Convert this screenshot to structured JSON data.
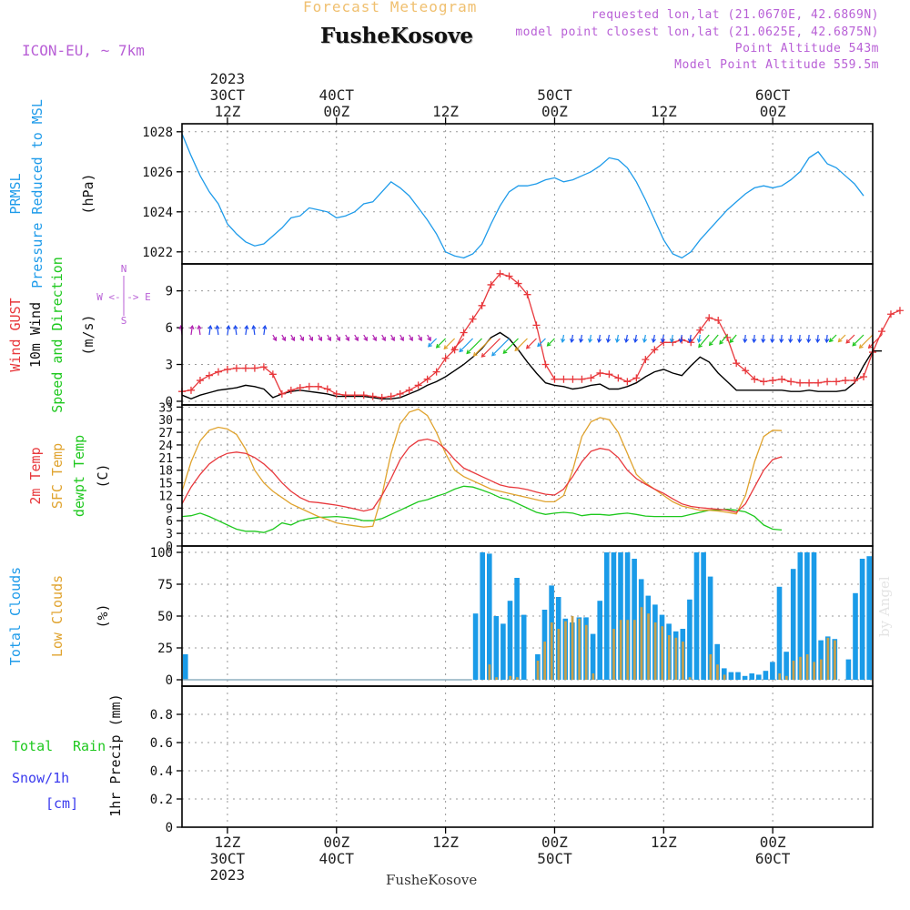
{
  "header": {
    "product": "Forecast Meteogram",
    "location": "FusheKosove",
    "model": "ICON-EU, ~ 7km",
    "requested": "requested lon,lat (21.0670E, 42.6869N)",
    "closest": "model point closest lon,lat (21.0625E, 42.6875N)",
    "point_alt": "Point Altitude 543m",
    "model_alt": "Model Point Altitude 559.5m",
    "footer": "FusheKosove",
    "watermark": "by Angel"
  },
  "time_axis": {
    "year": "2023",
    "ticks": [
      {
        "top": "12Z",
        "mid": "30CT",
        "bottom": "2023",
        "hour": 12
      },
      {
        "top": "00Z",
        "mid": "40CT",
        "bottom": "",
        "hour": 24
      },
      {
        "top": "12Z",
        "mid": "",
        "bottom": "",
        "hour": 36
      },
      {
        "top": "00Z",
        "mid": "50CT",
        "bottom": "",
        "hour": 48
      },
      {
        "top": "12Z",
        "mid": "",
        "bottom": "",
        "hour": 60
      },
      {
        "top": "00Z",
        "mid": "60CT",
        "bottom": "",
        "hour": 72
      }
    ],
    "top_labels": [
      {
        "l1": "2023",
        "l2": "30CT",
        "l3": "12Z",
        "hour": 12
      },
      {
        "l1": "",
        "l2": "40CT",
        "l3": "00Z",
        "hour": 24
      },
      {
        "l1": "",
        "l2": "",
        "l3": "12Z",
        "hour": 36
      },
      {
        "l1": "",
        "l2": "50CT",
        "l3": "00Z",
        "hour": 48
      },
      {
        "l1": "",
        "l2": "",
        "l3": "12Z",
        "hour": 60
      },
      {
        "l1": "",
        "l2": "60CT",
        "l3": "00Z",
        "hour": 72
      }
    ],
    "start_hour": 7,
    "end_hour": 83
  },
  "panel_labels": {
    "pressure": [
      "PRMSL",
      "Pressure Reduced to MSL",
      "(hPa)"
    ],
    "wind": [
      "Wind GUST",
      "10m Wind",
      "Speed and Direction",
      "(m/s)"
    ],
    "wind_compass": [
      "N",
      "W <-|-> E",
      "S"
    ],
    "temp": [
      "2m Temp",
      "SFC Temp",
      "dewpt Temp",
      "(C)"
    ],
    "cloud": [
      "Total Clouds",
      "Low Clouds",
      "(%)"
    ],
    "precip": [
      "Total",
      "Rain",
      "Snow/1h",
      "[cm]",
      "1hr Precip (mm)"
    ]
  },
  "colors": {
    "pressure": "#1e9bea",
    "gust": "#e8383c",
    "wind": "#000000",
    "temp2m": "#e8383c",
    "sfc": "#e0a32e",
    "dewpt": "#1ec81e",
    "total_cloud": "#1a9be8",
    "low_cloud": "#c8a04a",
    "label_purple": "#b85fd6",
    "label_green": "#1ec81e",
    "label_blue": "#3a3aee"
  },
  "chart_data": [
    {
      "type": "line",
      "title": "PRMSL Pressure Reduced to MSL",
      "ylabel": "(hPa)",
      "ylim": [
        1021.4,
        1028.4
      ],
      "yticks": [
        1022,
        1024,
        1026,
        1028
      ],
      "x_hours_start": 7,
      "x_step_hours": 1,
      "series": [
        {
          "name": "PRMSL",
          "values": [
            1027.9,
            1026.8,
            1025.8,
            1025.0,
            1024.4,
            1023.4,
            1022.9,
            1022.5,
            1022.3,
            1022.4,
            1022.8,
            1023.2,
            1023.7,
            1023.8,
            1024.2,
            1024.1,
            1024.0,
            1023.7,
            1023.8,
            1024.0,
            1024.4,
            1024.5,
            1025.0,
            1025.5,
            1025.2,
            1024.8,
            1024.2,
            1023.6,
            1022.9,
            1022.0,
            1021.8,
            1021.7,
            1021.9,
            1022.4,
            1023.4,
            1024.3,
            1025.0,
            1025.3,
            1025.3,
            1025.4,
            1025.6,
            1025.7,
            1025.5,
            1025.6,
            1025.8,
            1026.0,
            1026.3,
            1026.7,
            1026.6,
            1026.2,
            1025.5,
            1024.6,
            1023.6,
            1022.6,
            1021.9,
            1021.7,
            1022.0,
            1022.6,
            1023.1,
            1023.6,
            1024.1,
            1024.5,
            1024.9,
            1025.2,
            1025.3,
            1025.2,
            1025.3,
            1025.6,
            1026.0,
            1026.7,
            1027.0,
            1026.4,
            1026.2,
            1025.8,
            1025.4,
            1024.8
          ]
        }
      ]
    },
    {
      "type": "line",
      "title": "Wind GUST / 10m Wind Speed and Direction",
      "ylabel": "(m/s)",
      "ylim": [
        -0.3,
        11.2
      ],
      "yticks": [
        0,
        3,
        6,
        9
      ],
      "x_hours_start": 7,
      "x_step_hours": 1,
      "series": [
        {
          "name": "Wind GUST",
          "values": [
            0.8,
            0.9,
            1.7,
            2.1,
            2.4,
            2.6,
            2.7,
            2.7,
            2.7,
            2.8,
            2.2,
            0.6,
            0.9,
            1.1,
            1.2,
            1.2,
            1.0,
            0.6,
            0.5,
            0.5,
            0.5,
            0.4,
            0.3,
            0.4,
            0.6,
            0.9,
            1.3,
            1.8,
            2.4,
            3.5,
            4.2,
            5.6,
            6.7,
            7.8,
            9.5,
            10.4,
            10.2,
            9.6,
            8.7,
            6.2,
            3.0,
            1.8,
            1.8,
            1.8,
            1.8,
            1.9,
            2.3,
            2.2,
            1.9,
            1.6,
            1.9,
            3.4,
            4.2,
            4.8,
            4.8,
            5.0,
            4.8,
            5.8,
            6.8,
            6.6,
            5.2,
            3.1,
            2.5,
            1.8,
            1.6,
            1.7,
            1.8,
            1.6,
            1.5,
            1.5,
            1.5,
            1.6,
            1.6,
            1.7,
            1.7,
            2.0,
            4.0,
            5.7,
            7.1,
            7.4
          ]
        },
        {
          "name": "10m Wind",
          "values": [
            0.5,
            0.2,
            0.5,
            0.7,
            0.9,
            1.0,
            1.1,
            1.3,
            1.2,
            1.0,
            0.3,
            0.6,
            0.8,
            0.9,
            0.8,
            0.7,
            0.6,
            0.4,
            0.4,
            0.4,
            0.4,
            0.3,
            0.2,
            0.2,
            0.3,
            0.6,
            0.9,
            1.3,
            1.6,
            2.0,
            2.5,
            3.0,
            3.6,
            4.3,
            5.2,
            5.6,
            5.1,
            4.2,
            3.2,
            2.3,
            1.5,
            1.3,
            1.2,
            1.0,
            1.1,
            1.3,
            1.4,
            1.0,
            1.0,
            1.2,
            1.5,
            2.0,
            2.4,
            2.6,
            2.3,
            2.1,
            2.9,
            3.6,
            3.2,
            2.3,
            1.6,
            0.9,
            0.9,
            0.9,
            0.9,
            0.9,
            0.9,
            0.8,
            0.8,
            0.9,
            0.8,
            0.8,
            0.8,
            0.9,
            1.5,
            2.9,
            4.1,
            4.1
          ]
        }
      ]
    },
    {
      "type": "line",
      "title": "2m Temp / SFC Temp / dewpt Temp",
      "ylabel": "(C)",
      "ylim": [
        0,
        33.5
      ],
      "yticks": [
        0,
        3,
        6,
        9,
        12,
        15,
        18,
        21,
        24,
        27,
        30,
        33
      ],
      "x_hours_start": 7,
      "x_step_hours": 1,
      "series": [
        {
          "name": "2m Temp",
          "values": [
            10,
            14,
            17,
            19.5,
            21,
            22,
            22.3,
            22,
            21,
            19.5,
            17.5,
            15,
            13,
            11.5,
            10.5,
            10.3,
            10,
            9.7,
            9.3,
            8.8,
            8.3,
            8.8,
            12,
            16,
            20.5,
            23.5,
            25,
            25.4,
            24.8,
            23,
            20.5,
            18.5,
            17.5,
            16.5,
            15.5,
            14.5,
            14,
            13.8,
            13.4,
            12.8,
            12.3,
            12.1,
            13.5,
            16.5,
            20,
            22.5,
            23.2,
            22.8,
            21,
            18,
            16,
            14.7,
            13.5,
            12.5,
            11.2,
            10,
            9.4,
            9.1,
            8.9,
            8.7,
            8.5,
            8,
            10,
            14,
            18,
            20.5,
            21.2
          ]
        },
        {
          "name": "SFC Temp",
          "values": [
            13,
            20,
            25,
            27.5,
            28.2,
            27.8,
            26.5,
            23,
            18,
            15,
            13,
            11.5,
            10,
            9,
            8,
            7,
            6.3,
            5.5,
            5.1,
            4.8,
            4.5,
            4.7,
            12,
            22,
            29,
            31.8,
            32.5,
            31,
            27,
            22,
            18,
            16.5,
            15.5,
            14.5,
            13.5,
            13,
            12.5,
            12,
            11.5,
            11,
            10.5,
            10.5,
            12,
            18,
            26,
            29.5,
            30.5,
            30,
            27,
            22,
            17,
            15,
            13.5,
            12,
            10.5,
            9.5,
            9,
            8.5,
            8.5,
            8.3,
            8,
            7.6,
            12,
            20,
            26,
            27.5,
            27.4
          ]
        },
        {
          "name": "dewpt Temp",
          "values": [
            7,
            7.2,
            7.8,
            7,
            6,
            5,
            4,
            3.5,
            3.5,
            3.2,
            4,
            5.5,
            5,
            6,
            6.5,
            6.8,
            6.9,
            7,
            6.8,
            6.5,
            6,
            6,
            6.5,
            7.5,
            8.5,
            9.5,
            10.5,
            11,
            11.8,
            12.5,
            13.5,
            14.2,
            14,
            13.3,
            12.5,
            11.5,
            11,
            10,
            9,
            8,
            7.5,
            7.8,
            8,
            7.8,
            7.2,
            7.5,
            7.5,
            7.3,
            7.6,
            7.8,
            7.5,
            7.1,
            7,
            7,
            7,
            7,
            7.5,
            8,
            8.5,
            8.5,
            8.7,
            8.5,
            8.1,
            7,
            5,
            4,
            3.8
          ]
        }
      ]
    },
    {
      "type": "bar",
      "title": "Total Clouds / Low Clouds",
      "ylabel": "(%)",
      "ylim": [
        -5,
        105
      ],
      "yticks": [
        0,
        25,
        50,
        75,
        100
      ],
      "x_hours_start": 7,
      "x_step_hours": 1,
      "series": [
        {
          "name": "Total Clouds",
          "values": [
            20,
            0,
            0,
            0,
            0,
            0,
            0,
            0,
            0,
            0,
            0,
            0,
            0,
            0,
            0,
            0,
            0,
            0,
            0,
            0,
            0,
            0,
            0,
            0,
            0,
            0,
            0,
            0,
            0,
            0,
            0,
            0,
            0,
            0,
            0,
            0,
            0,
            0,
            0,
            0,
            0,
            0,
            52,
            100,
            99,
            50,
            44,
            62,
            80,
            51,
            0,
            20,
            55,
            74,
            65,
            48,
            45,
            49,
            49,
            36,
            62,
            100,
            100,
            100,
            100,
            95,
            79,
            66,
            59,
            51,
            44,
            38,
            40,
            63,
            100,
            100,
            81,
            28,
            9,
            6,
            6,
            3,
            5,
            4,
            7,
            14,
            73,
            22,
            87,
            100,
            100,
            100,
            31,
            34,
            32,
            0,
            16,
            68,
            95,
            97
          ]
        },
        {
          "name": "Low Clouds",
          "values": [
            0,
            0,
            0,
            0,
            0,
            0,
            0,
            0,
            0,
            0,
            0,
            0,
            0,
            0,
            0,
            0,
            0,
            0,
            0,
            0,
            0,
            0,
            0,
            0,
            0,
            0,
            0,
            0,
            0,
            0,
            0,
            0,
            0,
            0,
            0,
            0,
            0,
            0,
            0,
            0,
            0,
            0,
            0,
            0,
            12,
            2,
            0,
            3,
            2,
            0,
            0,
            15,
            30,
            45,
            40,
            46,
            50,
            48,
            43,
            5,
            0,
            0,
            40,
            47,
            47,
            47,
            57,
            52,
            45,
            42,
            35,
            33,
            30,
            2,
            0,
            0,
            20,
            12,
            4,
            0,
            0,
            0,
            0,
            0,
            0,
            0,
            5,
            3,
            15,
            18,
            20,
            14,
            16,
            33,
            31,
            0,
            0,
            0,
            0,
            0
          ]
        }
      ]
    },
    {
      "type": "bar",
      "title": "1hr Precip (mm)",
      "ylabel": "1hr Precip (mm)",
      "ylim": [
        0,
        1
      ],
      "yticks": [
        0,
        0.2,
        0.4,
        0.6,
        0.8
      ],
      "x_hours_start": 7,
      "x_step_hours": 1,
      "series": [
        {
          "name": "Total Rain",
          "values": []
        },
        {
          "name": "Snow/1h",
          "values": []
        }
      ]
    }
  ]
}
